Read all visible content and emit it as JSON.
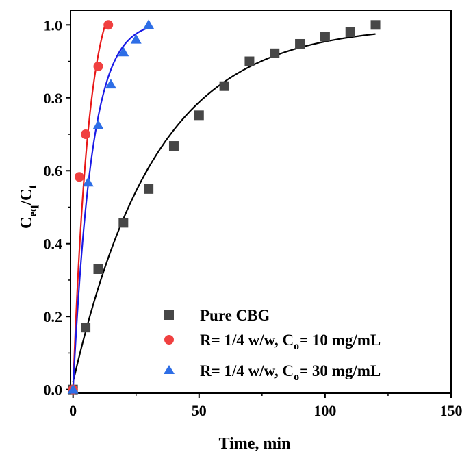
{
  "chart_data": {
    "type": "scatter",
    "title": "",
    "xlabel": "Time, min",
    "ylabel": {
      "main": "C",
      "sub1": "eq",
      "sep": "/C",
      "sub2": "t"
    },
    "xlim": [
      -1,
      150
    ],
    "ylim": [
      -0.01,
      1.04
    ],
    "x_ticks": [
      0,
      50,
      100,
      150
    ],
    "x_tick_labels": [
      "0",
      "50",
      "100",
      "150"
    ],
    "y_ticks": [
      0.0,
      0.2,
      0.4,
      0.6,
      0.8,
      1.0
    ],
    "y_tick_labels": [
      "0.0",
      "0.2",
      "0.4",
      "0.6",
      "0.8",
      "1.0"
    ],
    "grid": false,
    "legend_position": "bottom-right",
    "series": [
      {
        "name": "Pure CBG",
        "legend": {
          "main": "Pure CBG"
        },
        "marker": "square",
        "marker_color": "#474747",
        "line_color": "#000000",
        "x": [
          0,
          5,
          10,
          20,
          30,
          40,
          50,
          60,
          70,
          80,
          90,
          100,
          110,
          120
        ],
        "y": [
          0.0,
          0.17,
          0.33,
          0.457,
          0.55,
          0.668,
          0.752,
          0.832,
          0.9,
          0.922,
          0.948,
          0.968,
          0.98,
          1.0
        ],
        "fit": {
          "model": "exponential",
          "a": 0.98,
          "k": 0.0306,
          "c": 0.02,
          "x_max": 120
        }
      },
      {
        "name": "R= 1/4 w/w, Co= 10 mg/mL",
        "legend": {
          "main": "R= 1/4 w/w, C",
          "sub": "o",
          "rest": "= 10 mg/mL"
        },
        "marker": "circle",
        "marker_color": "#f04040",
        "line_color": "#e81818",
        "x": [
          0,
          2.5,
          5,
          10,
          14
        ],
        "y": [
          0.0,
          0.583,
          0.7,
          0.886,
          1.0
        ],
        "fit": {
          "model": "exponential",
          "a": 1.15,
          "k": 0.16,
          "c": 0.0,
          "x_max": 14
        }
      },
      {
        "name": "R= 1/4 w/w, Co= 30 mg/mL",
        "legend": {
          "main": "R= 1/4 w/w, C",
          "sub": "o",
          "rest": "= 30 mg/mL"
        },
        "marker": "triangle",
        "marker_color": "#2e6ee6",
        "line_color": "#1a1ae6",
        "x": [
          0,
          6,
          10,
          15,
          20,
          25,
          30
        ],
        "y": [
          0.0,
          0.568,
          0.725,
          0.837,
          0.925,
          0.96,
          1.0
        ],
        "fit": {
          "model": "exponential",
          "a": 1.01,
          "k": 0.135,
          "c": 0.0,
          "x_max": 30
        }
      }
    ]
  }
}
